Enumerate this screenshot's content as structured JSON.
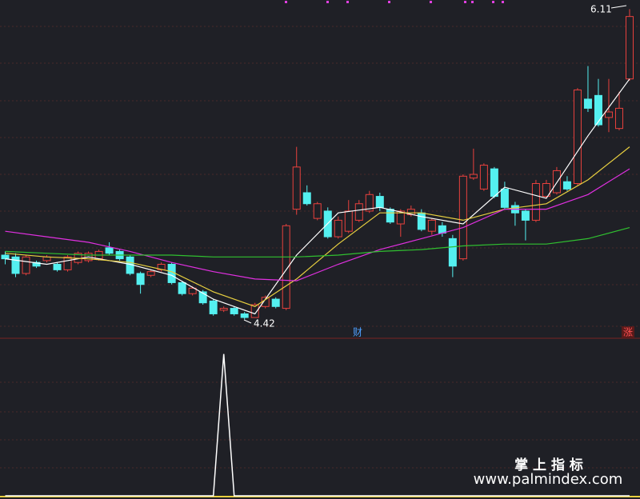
{
  "chart_data": [
    {
      "type": "candlestick",
      "open": [
        4.77,
        4.76,
        4.67,
        4.73,
        4.74,
        4.72,
        4.69,
        4.73,
        4.74,
        4.75,
        4.81,
        4.79,
        4.76,
        4.67,
        4.66,
        4.69,
        4.72,
        4.62,
        4.56,
        4.57,
        4.52,
        4.47,
        4.48,
        4.45,
        4.43,
        4.49,
        4.53,
        4.48,
        5.02,
        5.11,
        4.97,
        5.01,
        4.87,
        4.9,
        4.96,
        5.01,
        5.09,
        5.02,
        4.94,
        4.99,
        5.0,
        4.9,
        4.93,
        4.86,
        4.75,
        5.19,
        5.13,
        5.24,
        5.13,
        5.04,
        5.01,
        4.96,
        5.09,
        5.11,
        5.17,
        5.16,
        5.62,
        5.64,
        5.52,
        5.46,
        5.73
      ],
      "high": [
        4.79,
        4.78,
        4.77,
        4.74,
        4.77,
        4.73,
        4.77,
        4.79,
        4.79,
        4.8,
        4.84,
        4.8,
        4.77,
        4.68,
        4.69,
        4.73,
        4.73,
        4.63,
        4.6,
        4.58,
        4.53,
        4.49,
        4.49,
        4.46,
        4.51,
        4.55,
        4.54,
        4.94,
        5.36,
        5.15,
        5.06,
        5.03,
        4.98,
        5.07,
        5.07,
        5.12,
        5.11,
        5.03,
        5.02,
        5.04,
        5.02,
        4.97,
        4.95,
        4.88,
        5.21,
        5.35,
        5.27,
        5.25,
        5.17,
        5.06,
        5.02,
        5.18,
        5.18,
        5.25,
        5.2,
        5.68,
        5.8,
        5.73,
        5.73,
        5.66,
        6.11
      ],
      "low": [
        4.72,
        4.65,
        4.66,
        4.7,
        4.73,
        4.68,
        4.68,
        4.72,
        4.73,
        4.74,
        4.77,
        4.74,
        4.66,
        4.56,
        4.65,
        4.68,
        4.61,
        4.55,
        4.55,
        4.5,
        4.44,
        4.46,
        4.44,
        4.42,
        4.43,
        4.48,
        4.48,
        4.47,
        4.99,
        5.04,
        4.96,
        4.86,
        4.86,
        4.89,
        4.95,
        5.0,
        5.01,
        4.94,
        4.87,
        4.98,
        4.9,
        4.88,
        4.87,
        4.65,
        4.74,
        5.18,
        5.12,
        5.08,
        5.02,
        4.93,
        4.85,
        4.95,
        5.08,
        5.1,
        5.12,
        5.15,
        5.55,
        5.47,
        5.44,
        5.45,
        5.72
      ],
      "close": [
        4.75,
        4.67,
        4.76,
        4.71,
        4.76,
        4.69,
        4.76,
        4.78,
        4.78,
        4.79,
        4.78,
        4.75,
        4.67,
        4.61,
        4.68,
        4.72,
        4.62,
        4.56,
        4.59,
        4.51,
        4.45,
        4.48,
        4.45,
        4.43,
        4.5,
        4.54,
        4.49,
        4.93,
        5.25,
        5.05,
        5.05,
        4.87,
        4.96,
        5.01,
        5.05,
        5.1,
        5.03,
        4.95,
        5.01,
        5.02,
        4.91,
        4.96,
        4.89,
        4.71,
        5.2,
        5.21,
        5.26,
        5.09,
        5.03,
        5.0,
        4.96,
        5.16,
        5.16,
        5.23,
        5.13,
        5.67,
        5.57,
        5.48,
        5.55,
        5.57,
        6.07
      ],
      "up_color": "#e8413d",
      "down_color": "#54f0f0",
      "xlim": [
        -0.5,
        61
      ],
      "ylim": [
        4.33,
        6.16
      ],
      "lines": [
        {
          "color": "#ffffff",
          "x": [
            0,
            4,
            8,
            12,
            16,
            20,
            24,
            28,
            32,
            36,
            40,
            44,
            48,
            52,
            56,
            60
          ],
          "values": [
            4.75,
            4.72,
            4.76,
            4.72,
            4.66,
            4.53,
            4.45,
            4.77,
            5.0,
            5.03,
            4.98,
            4.94,
            5.14,
            5.08,
            5.42,
            5.73
          ]
        },
        {
          "color": "#e8d040",
          "x": [
            0,
            4,
            8,
            12,
            16,
            20,
            24,
            28,
            32,
            36,
            40,
            44,
            48,
            52,
            56,
            60
          ],
          "values": [
            4.78,
            4.76,
            4.75,
            4.73,
            4.68,
            4.57,
            4.49,
            4.64,
            4.83,
            5.0,
            5.0,
            4.96,
            5.02,
            5.05,
            5.18,
            5.36
          ]
        },
        {
          "color": "#e030e0",
          "x": [
            0,
            4,
            8,
            12,
            16,
            20,
            24,
            28,
            32,
            36,
            40,
            44,
            48,
            52,
            56,
            60
          ],
          "values": [
            4.9,
            4.87,
            4.84,
            4.79,
            4.73,
            4.68,
            4.64,
            4.63,
            4.72,
            4.8,
            4.86,
            4.92,
            5.02,
            5.02,
            5.1,
            5.24
          ]
        },
        {
          "color": "#30c030",
          "x": [
            0,
            4,
            8,
            12,
            16,
            20,
            24,
            28,
            32,
            36,
            40,
            44,
            48,
            52,
            56,
            60
          ],
          "values": [
            4.79,
            4.78,
            4.77,
            4.77,
            4.77,
            4.76,
            4.76,
            4.76,
            4.77,
            4.79,
            4.8,
            4.82,
            4.83,
            4.83,
            4.86,
            4.92
          ]
        }
      ],
      "annotations": [
        {
          "text": "6.11"
        },
        {
          "text": "4.42"
        },
        {
          "text": "财"
        },
        {
          "text": "涨"
        }
      ]
    },
    {
      "type": "line",
      "values": [
        0,
        0,
        0,
        0,
        0,
        0,
        0,
        0,
        0,
        0,
        0,
        0,
        0,
        0,
        0,
        0,
        0,
        0,
        0,
        0,
        0,
        1,
        0,
        0,
        0,
        0,
        0,
        0,
        0,
        0,
        0,
        0,
        0,
        0,
        0,
        0,
        0,
        0,
        0,
        0,
        0,
        0,
        0,
        0,
        0,
        0,
        0,
        0,
        0,
        0,
        0,
        0,
        0,
        0,
        0,
        0,
        0,
        0,
        0,
        0,
        0
      ],
      "color": "#ffffff",
      "xlim": [
        -0.5,
        61
      ],
      "ylim": [
        0,
        1.1
      ]
    }
  ],
  "watermark": {
    "title": "掌 上 指 标",
    "url": "www.palmindex.com"
  }
}
